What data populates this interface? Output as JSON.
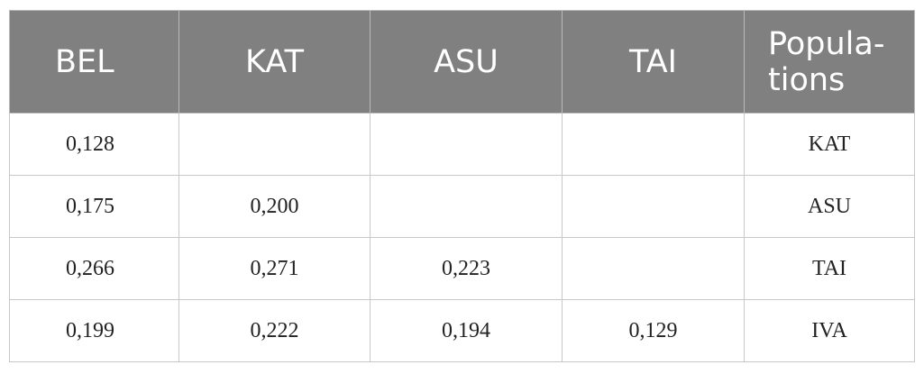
{
  "table": {
    "headers": [
      "BEL",
      "KAT",
      "ASU",
      "TAI",
      "Popula-\ntions"
    ],
    "rows": [
      [
        "0,128",
        "",
        "",
        "",
        "KAT"
      ],
      [
        "0,175",
        "0,200",
        "",
        "",
        "ASU"
      ],
      [
        "0,266",
        "0,271",
        "0,223",
        "",
        "TAI"
      ],
      [
        "0,199",
        "0,222",
        "0,194",
        "0,129",
        "IVA"
      ]
    ]
  },
  "colors": {
    "header_background": "#808080",
    "header_text": "#ffffff",
    "grid_line": "#c8c8c8"
  }
}
